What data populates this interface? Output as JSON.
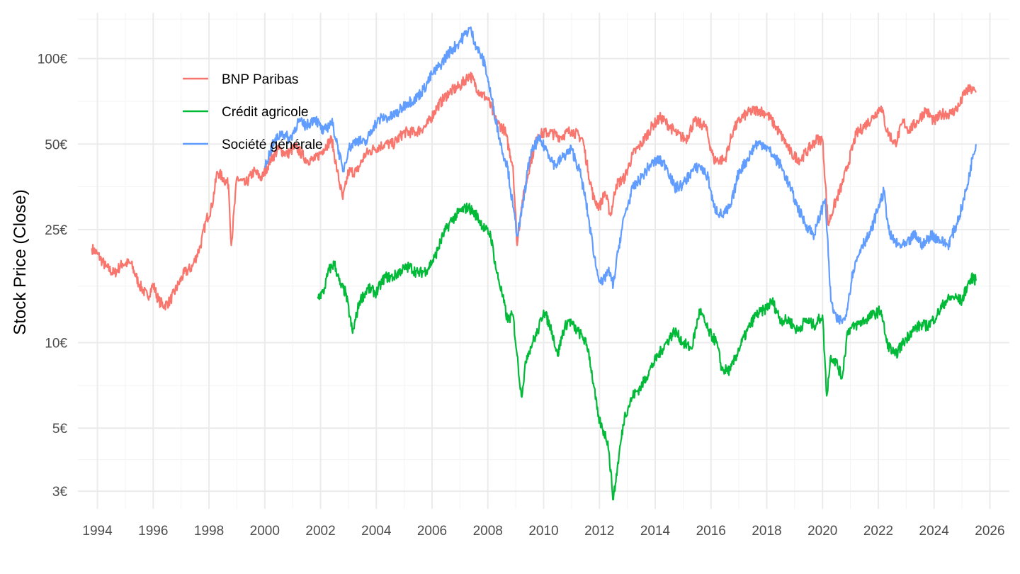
{
  "chart_data": {
    "type": "line",
    "title": "",
    "xlabel": "",
    "ylabel": "Stock Price (Close)",
    "y_scale": "log",
    "y_unit": "€",
    "xlim": [
      1993.3,
      2026.7
    ],
    "ylim": [
      2.6,
      145
    ],
    "grid": true,
    "legend_position": "top-left (inside plot)",
    "x_ticks": [
      1994,
      1996,
      1998,
      2000,
      2002,
      2004,
      2006,
      2008,
      2010,
      2012,
      2014,
      2016,
      2018,
      2020,
      2022,
      2024,
      2026
    ],
    "x_tick_labels": [
      "1994",
      "1996",
      "1998",
      "2000",
      "2002",
      "2004",
      "2006",
      "2008",
      "2010",
      "2012",
      "2014",
      "2016",
      "2018",
      "2020",
      "2022",
      "2024",
      "2026"
    ],
    "y_ticks": [
      3,
      5,
      10,
      25,
      50,
      100
    ],
    "y_tick_labels": [
      "3€",
      "5€",
      "10€",
      "25€",
      "50€",
      "100€"
    ],
    "series": [
      {
        "name": "BNP Paribas",
        "color": "#F8766D",
        "x": [
          1993.8,
          1994.0,
          1994.3,
          1994.6,
          1994.9,
          1995.2,
          1995.5,
          1995.8,
          1996.0,
          1996.2,
          1996.4,
          1996.6,
          1996.9,
          1997.1,
          1997.4,
          1997.7,
          1997.9,
          1998.1,
          1998.3,
          1998.5,
          1998.7,
          1998.8,
          1999.0,
          1999.3,
          1999.6,
          1999.9,
          2000.2,
          2000.5,
          2000.8,
          2001.1,
          2001.5,
          2001.8,
          2002.1,
          2002.4,
          2002.6,
          2002.8,
          2003.0,
          2003.3,
          2003.6,
          2003.9,
          2004.3,
          2004.6,
          2005.0,
          2005.4,
          2005.8,
          2006.2,
          2006.6,
          2007.0,
          2007.35,
          2007.7,
          2008.0,
          2008.3,
          2008.6,
          2008.9,
          2009.05,
          2009.2,
          2009.5,
          2009.8,
          2010.2,
          2010.6,
          2011.0,
          2011.4,
          2011.6,
          2011.8,
          2012.0,
          2012.2,
          2012.4,
          2012.6,
          2012.9,
          2013.2,
          2013.5,
          2013.9,
          2014.2,
          2014.5,
          2014.8,
          2015.1,
          2015.4,
          2015.8,
          2016.1,
          2016.5,
          2016.8,
          2017.1,
          2017.4,
          2017.7,
          2018.0,
          2018.3,
          2018.6,
          2018.9,
          2019.2,
          2019.5,
          2019.8,
          2020.0,
          2020.2,
          2020.4,
          2020.7,
          2020.9,
          2021.2,
          2021.5,
          2021.8,
          2022.1,
          2022.3,
          2022.6,
          2022.9,
          2023.1,
          2023.4,
          2023.7,
          2024.0,
          2024.3,
          2024.6,
          2024.9,
          2025.1,
          2025.3,
          2025.5
        ],
        "y": [
          21.5,
          20.5,
          18.5,
          17.5,
          19,
          19,
          16,
          14.5,
          16,
          14,
          13.5,
          14,
          16,
          17.5,
          18.5,
          22,
          27,
          30,
          40,
          38,
          36,
          22,
          38,
          36,
          40,
          38,
          44,
          48,
          46,
          49,
          44,
          44,
          48,
          52,
          40,
          32,
          40,
          40,
          46,
          48,
          50,
          50,
          55,
          55,
          58,
          68,
          76,
          80,
          88,
          76,
          72,
          60,
          56,
          42,
          22,
          30,
          42,
          54,
          55,
          53,
          56,
          52,
          40,
          32,
          30,
          34,
          28,
          36,
          38,
          46,
          50,
          58,
          62,
          58,
          54,
          52,
          60,
          58,
          44,
          44,
          56,
          62,
          65,
          66,
          64,
          58,
          52,
          46,
          44,
          48,
          52,
          52,
          26,
          30,
          36,
          42,
          54,
          58,
          62,
          68,
          56,
          50,
          60,
          56,
          60,
          66,
          60,
          64,
          64,
          68,
          76,
          78,
          76
        ]
      },
      {
        "name": "Crédit agricole",
        "color": "#00BA38",
        "x": [
          2001.9,
          2002.1,
          2002.3,
          2002.5,
          2002.7,
          2002.9,
          2003.15,
          2003.4,
          2003.7,
          2004.0,
          2004.3,
          2004.6,
          2004.9,
          2005.2,
          2005.5,
          2005.8,
          2006.1,
          2006.4,
          2006.7,
          2007.0,
          2007.3,
          2007.6,
          2007.9,
          2008.1,
          2008.3,
          2008.5,
          2008.7,
          2008.9,
          2009.05,
          2009.2,
          2009.4,
          2009.6,
          2009.8,
          2010.0,
          2010.3,
          2010.5,
          2010.7,
          2010.9,
          2011.2,
          2011.4,
          2011.6,
          2011.8,
          2011.95,
          2012.1,
          2012.3,
          2012.5,
          2012.7,
          2012.9,
          2013.2,
          2013.5,
          2013.8,
          2014.1,
          2014.4,
          2014.7,
          2015.0,
          2015.3,
          2015.6,
          2015.9,
          2016.2,
          2016.4,
          2016.7,
          2017.0,
          2017.3,
          2017.6,
          2017.9,
          2018.2,
          2018.5,
          2018.8,
          2019.1,
          2019.4,
          2019.7,
          2020.0,
          2020.15,
          2020.3,
          2020.5,
          2020.7,
          2020.9,
          2021.2,
          2021.5,
          2021.8,
          2022.1,
          2022.3,
          2022.6,
          2022.9,
          2023.2,
          2023.5,
          2023.8,
          2024.1,
          2024.4,
          2024.7,
          2025.0,
          2025.2,
          2025.4,
          2025.5
        ],
        "y": [
          14.5,
          15,
          18,
          19,
          16,
          15,
          10.8,
          14,
          15.5,
          15,
          17,
          17,
          18,
          18.5,
          17.5,
          18,
          20,
          24,
          27,
          29,
          30,
          28,
          25,
          24,
          18,
          15,
          12,
          12.5,
          9,
          6.5,
          9,
          10,
          11,
          13,
          11,
          9,
          11,
          12,
          11,
          10.5,
          9.5,
          7,
          5.5,
          5,
          4.5,
          2.8,
          4,
          5.5,
          6.5,
          7,
          8,
          9,
          10,
          11,
          10,
          9.5,
          13,
          11,
          10,
          8,
          8,
          9.5,
          11,
          12.5,
          13,
          14,
          12,
          12,
          11,
          12,
          11.5,
          12.5,
          6.5,
          9,
          8.5,
          7.5,
          11,
          11.5,
          12,
          12.5,
          13,
          10,
          9,
          10,
          11,
          11.5,
          11.5,
          12.5,
          14,
          14.5,
          14,
          16,
          17,
          16.5
        ]
      },
      {
        "name": "Société générale",
        "color": "#619CFF",
        "x": [
          2000.0,
          2000.3,
          2000.6,
          2000.9,
          2001.2,
          2001.5,
          2001.8,
          2002.1,
          2002.4,
          2002.6,
          2002.8,
          2003.0,
          2003.3,
          2003.6,
          2003.9,
          2004.2,
          2004.5,
          2004.8,
          2005.1,
          2005.4,
          2005.7,
          2006.0,
          2006.3,
          2006.6,
          2006.9,
          2007.2,
          2007.35,
          2007.6,
          2007.9,
          2008.1,
          2008.3,
          2008.5,
          2008.7,
          2008.9,
          2009.05,
          2009.2,
          2009.5,
          2009.8,
          2010.1,
          2010.4,
          2010.7,
          2011.0,
          2011.3,
          2011.5,
          2011.7,
          2011.9,
          2012.1,
          2012.3,
          2012.5,
          2012.7,
          2012.9,
          2013.2,
          2013.5,
          2013.8,
          2014.1,
          2014.4,
          2014.7,
          2015.0,
          2015.3,
          2015.6,
          2015.9,
          2016.1,
          2016.4,
          2016.7,
          2017.0,
          2017.3,
          2017.6,
          2017.9,
          2018.2,
          2018.5,
          2018.8,
          2019.1,
          2019.4,
          2019.7,
          2020.0,
          2020.1,
          2020.3,
          2020.5,
          2020.8,
          2021.1,
          2021.4,
          2021.7,
          2022.0,
          2022.2,
          2022.4,
          2022.7,
          2023.0,
          2023.3,
          2023.6,
          2023.9,
          2024.2,
          2024.5,
          2024.8,
          2025.0,
          2025.2,
          2025.4,
          2025.5
        ],
        "y": [
          42,
          50,
          55,
          52,
          60,
          58,
          62,
          55,
          60,
          50,
          40,
          48,
          52,
          50,
          58,
          62,
          62,
          65,
          70,
          72,
          78,
          88,
          95,
          105,
          112,
          122,
          128,
          110,
          95,
          75,
          60,
          48,
          42,
          30,
          24,
          28,
          45,
          52,
          48,
          42,
          45,
          48,
          40,
          32,
          24,
          18,
          16,
          18,
          16,
          22,
          28,
          35,
          38,
          42,
          44,
          42,
          35,
          36,
          40,
          42,
          38,
          30,
          28,
          30,
          40,
          44,
          50,
          50,
          46,
          42,
          36,
          30,
          26,
          24,
          30,
          32,
          14,
          12,
          12,
          18,
          22,
          24,
          30,
          34,
          24,
          22,
          22,
          24,
          22,
          24,
          23,
          22,
          26,
          30,
          36,
          46,
          50
        ]
      }
    ]
  }
}
